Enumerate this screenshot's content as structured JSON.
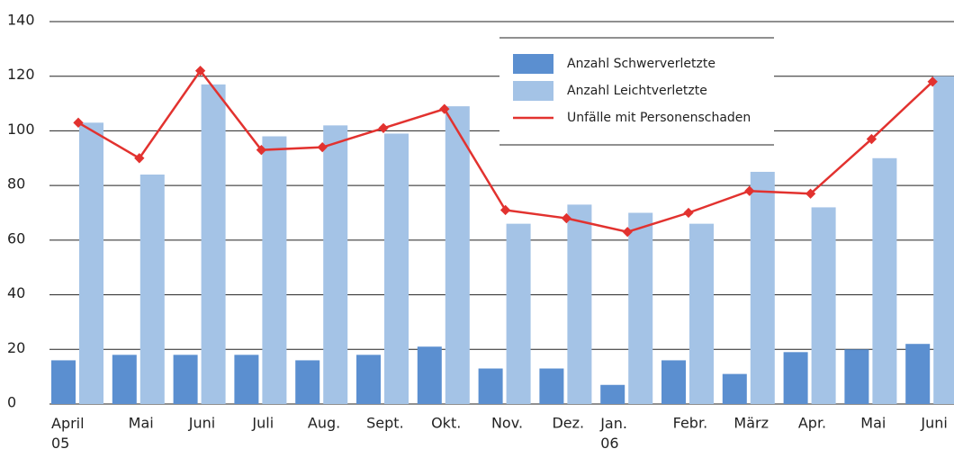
{
  "chart_data": {
    "type": "bar_line",
    "categories": [
      "April\n05",
      "Mai",
      "Juni",
      "Juli",
      "Aug.",
      "Sept.",
      "Okt.",
      "Nov.",
      "Dez.",
      "Jan.\n06",
      "Febr.",
      "März",
      "Apr.",
      "Mai",
      "Juni"
    ],
    "series": [
      {
        "name": "Anzahl Schwerverletzte",
        "type": "bar",
        "color": "#5b8fd0",
        "values": [
          16,
          18,
          18,
          18,
          16,
          18,
          21,
          13,
          13,
          7,
          16,
          11,
          19,
          20,
          22
        ]
      },
      {
        "name": "Anzahl Leichtverletzte",
        "type": "bar",
        "color": "#a4c3e6",
        "values": [
          103,
          84,
          117,
          98,
          102,
          99,
          109,
          66,
          73,
          70,
          66,
          85,
          72,
          90,
          120
        ]
      },
      {
        "name": "Unfälle mit Personenschaden",
        "type": "line",
        "color": "#e2322f",
        "values": [
          103,
          90,
          122,
          93,
          94,
          101,
          108,
          71,
          68,
          63,
          70,
          78,
          77,
          97,
          118
        ]
      }
    ],
    "ylim": [
      0,
      140
    ],
    "yticks": [
      0,
      20,
      40,
      60,
      80,
      100,
      120,
      140
    ],
    "grid": true
  }
}
